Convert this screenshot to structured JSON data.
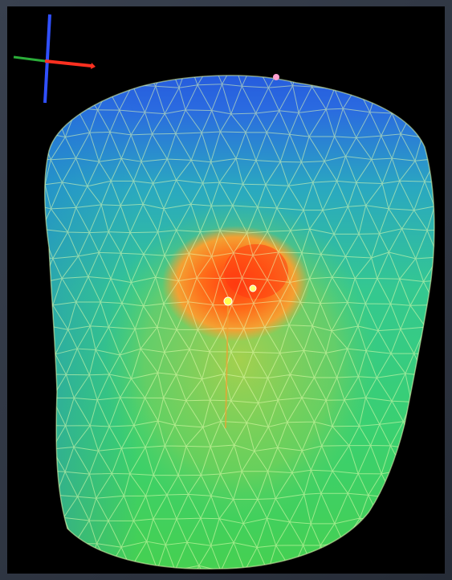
{
  "colors": {
    "background": "#000000",
    "frame": "#2f3644",
    "mesh_cold": "#2a4fe0",
    "mesh_mid": "#2fd080",
    "mesh_warm": "#9ed84a",
    "hotspot_outer": "#f0a030",
    "hotspot_core": "#ff4a10",
    "wireframe": "#e8ffb0",
    "axis_x": "#ff3020",
    "axis_y": "#30c040",
    "axis_z": "#3050ff",
    "marker_primary": "#ffff40",
    "marker_secondary": "#ffff60",
    "marker_top": "#ff9fd0"
  },
  "icons": {
    "axis_gizmo": "xyz-axis-icon"
  }
}
